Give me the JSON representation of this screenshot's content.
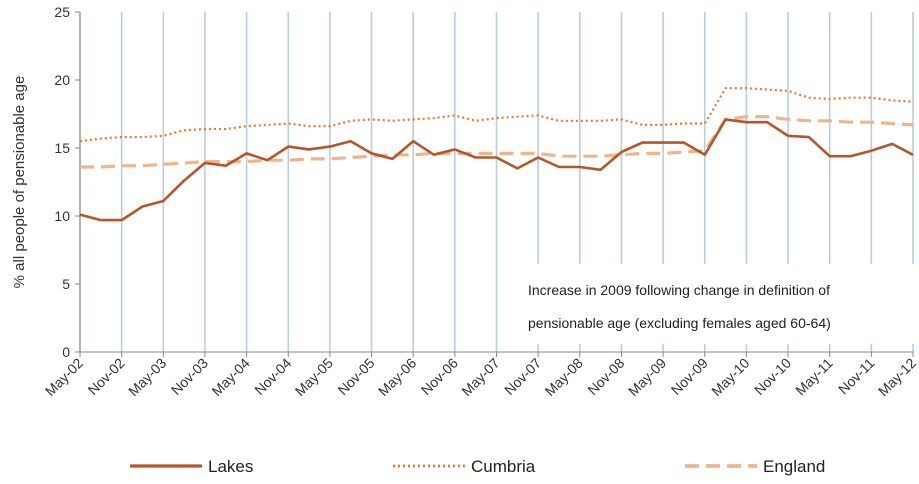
{
  "chart_data": {
    "type": "line",
    "ylabel": "% all people of pensionable age",
    "ylim": [
      0,
      25
    ],
    "yticks": [
      "0",
      "5",
      "10",
      "15",
      "20",
      "25"
    ],
    "x_tick_labels": [
      "May-02",
      "Nov-02",
      "May-03",
      "Nov-03",
      "May-04",
      "Nov-04",
      "May-05",
      "Nov-05",
      "May-06",
      "Nov-06",
      "May-07",
      "Nov-07",
      "May-08",
      "Nov-08",
      "May-09",
      "Nov-09",
      "May-10",
      "Nov-10",
      "May-11",
      "Nov-11",
      "May-12"
    ],
    "x": [
      "May-02",
      "Aug-02",
      "Nov-02",
      "Feb-03",
      "May-03",
      "Aug-03",
      "Nov-03",
      "Feb-04",
      "May-04",
      "Aug-04",
      "Nov-04",
      "Feb-05",
      "May-05",
      "Aug-05",
      "Nov-05",
      "Feb-06",
      "May-06",
      "Aug-06",
      "Nov-06",
      "Feb-07",
      "May-07",
      "Aug-07",
      "Nov-07",
      "Feb-08",
      "May-08",
      "Aug-08",
      "Nov-08",
      "Feb-09",
      "May-09",
      "Aug-09",
      "Nov-09",
      "Feb-10",
      "May-10",
      "Aug-10",
      "Nov-10",
      "Feb-11",
      "May-11",
      "Aug-11",
      "Nov-11",
      "Feb-12",
      "May-12"
    ],
    "grid": "vertical",
    "legend_position": "bottom",
    "annotation_lines": [
      "Increase in 2009 following change in definition of",
      "pensionable age (excluding females aged 60-64)"
    ],
    "series": [
      {
        "name": "Lakes",
        "color": "#b5562a",
        "style": "solid",
        "values": [
          10.1,
          9.7,
          9.7,
          10.7,
          11.1,
          12.6,
          13.9,
          13.7,
          14.6,
          14.1,
          15.1,
          14.9,
          15.1,
          15.5,
          14.6,
          14.2,
          15.5,
          14.5,
          14.9,
          14.3,
          14.3,
          13.5,
          14.3,
          13.6,
          13.6,
          13.4,
          14.7,
          15.4,
          15.4,
          15.4,
          14.5,
          17.1,
          16.9,
          16.9,
          15.9,
          15.8,
          14.4,
          14.4,
          14.8,
          15.3,
          14.5
        ]
      },
      {
        "name": "Cumbria",
        "color": "#e07b2a",
        "style": "dotted",
        "values": [
          15.5,
          15.7,
          15.8,
          15.8,
          15.9,
          16.3,
          16.4,
          16.4,
          16.6,
          16.7,
          16.8,
          16.6,
          16.6,
          17.0,
          17.1,
          17.0,
          17.1,
          17.2,
          17.4,
          17.0,
          17.2,
          17.3,
          17.4,
          17.0,
          17.0,
          17.0,
          17.1,
          16.7,
          16.7,
          16.8,
          16.8,
          19.4,
          19.4,
          19.3,
          19.2,
          18.7,
          18.6,
          18.7,
          18.7,
          18.5,
          18.4
        ]
      },
      {
        "name": "England",
        "color": "#f0b48a",
        "style": "dashed",
        "values": [
          13.6,
          13.6,
          13.7,
          13.7,
          13.8,
          13.9,
          14.0,
          14.0,
          14.0,
          14.1,
          14.1,
          14.2,
          14.2,
          14.3,
          14.4,
          14.5,
          14.5,
          14.6,
          14.6,
          14.6,
          14.6,
          14.6,
          14.6,
          14.4,
          14.4,
          14.4,
          14.5,
          14.6,
          14.6,
          14.7,
          14.8,
          17.1,
          17.3,
          17.3,
          17.1,
          17.0,
          17.0,
          16.9,
          16.9,
          16.8,
          16.7
        ]
      }
    ]
  }
}
